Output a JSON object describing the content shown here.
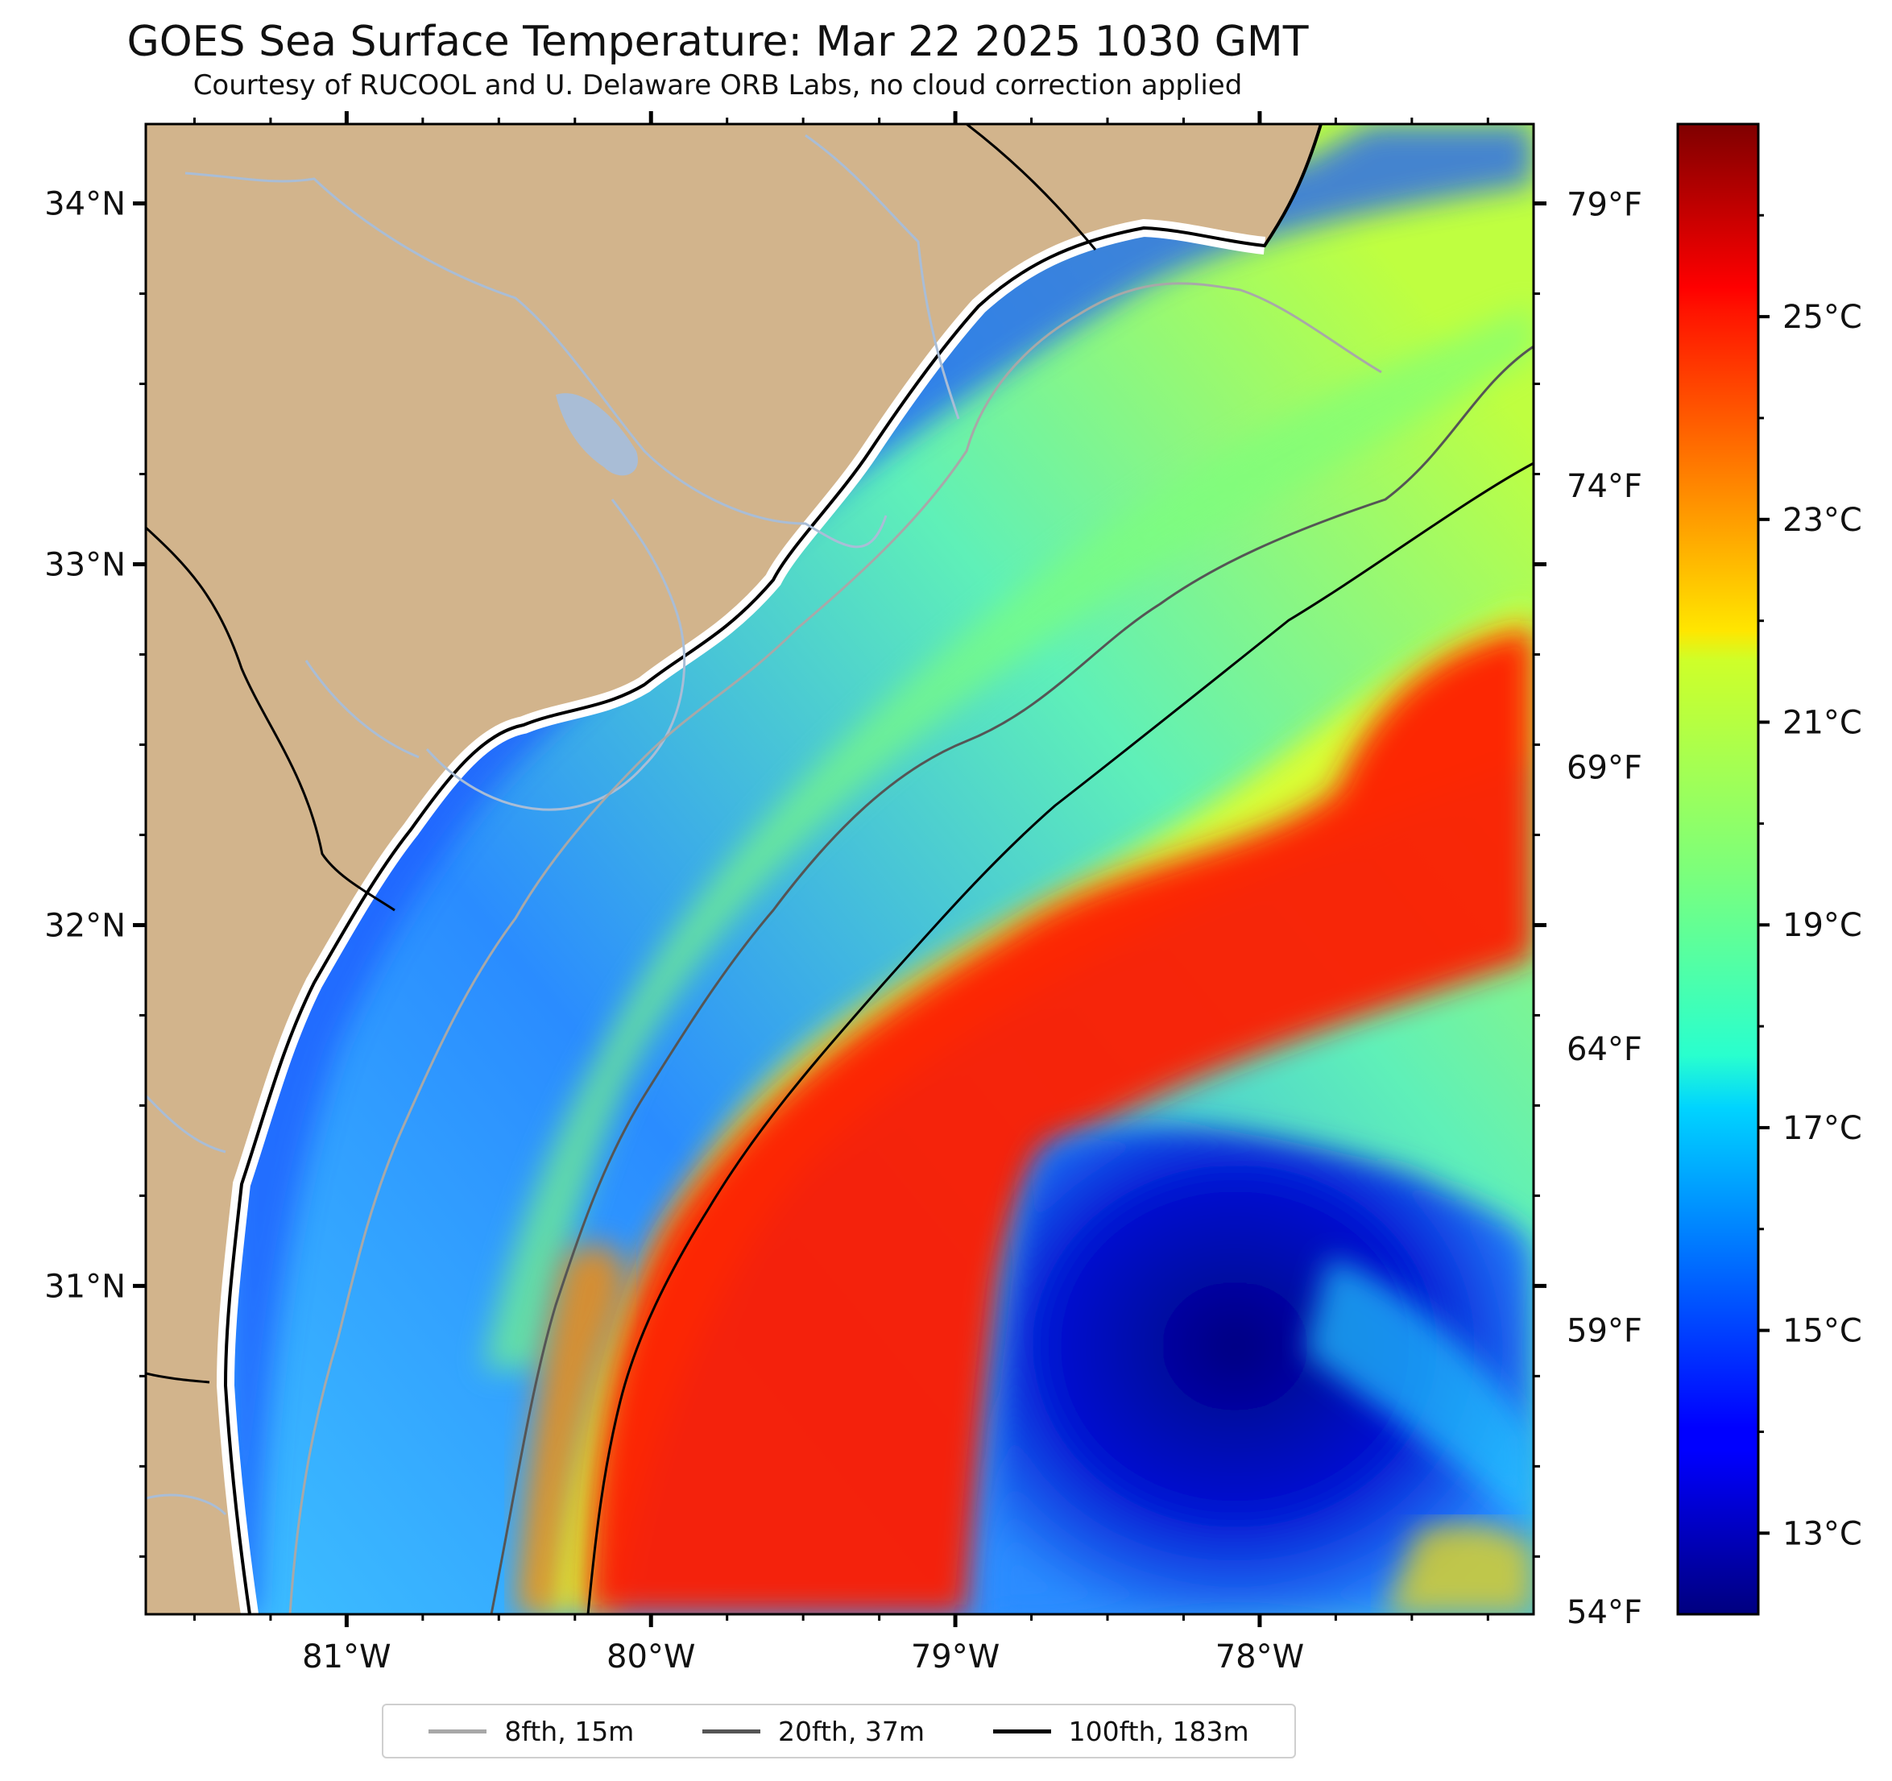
{
  "title": "GOES Sea Surface Temperature: Mar 22 2025 1030 GMT",
  "subtitle": "Courtesy of RUCOOL and U. Delaware ORB Labs, no cloud correction applied",
  "map": {
    "lon_range": [
      -81.66,
      -77.1
    ],
    "lat_range": [
      30.09,
      34.22
    ],
    "lon_ticks": [
      {
        "value": -81,
        "label": "81°W"
      },
      {
        "value": -80,
        "label": "80°W"
      },
      {
        "value": -79,
        "label": "79°W"
      },
      {
        "value": -78,
        "label": "78°W"
      }
    ],
    "lat_ticks": [
      {
        "value": 34,
        "label": "34°N"
      },
      {
        "value": 33,
        "label": "33°N"
      },
      {
        "value": 32,
        "label": "32°N"
      },
      {
        "value": 31,
        "label": "31°N"
      }
    ],
    "fahrenheit_ticks": [
      {
        "value": 79,
        "label": "79°F"
      },
      {
        "value": 74,
        "label": "74°F"
      },
      {
        "value": 69,
        "label": "69°F"
      },
      {
        "value": 64,
        "label": "64°F"
      },
      {
        "value": 59,
        "label": "59°F"
      },
      {
        "value": 54,
        "label": "54°F"
      }
    ],
    "land_color": "#d2b48c",
    "river_color": "#a9bdd6"
  },
  "colorbar": {
    "colormap": "jet",
    "range_c": [
      12.2,
      26.9
    ],
    "ticks": [
      {
        "value": 13,
        "label": "13°C"
      },
      {
        "value": 15,
        "label": "15°C"
      },
      {
        "value": 17,
        "label": "17°C"
      },
      {
        "value": 19,
        "label": "19°C"
      },
      {
        "value": 21,
        "label": "21°C"
      },
      {
        "value": 23,
        "label": "23°C"
      },
      {
        "value": 25,
        "label": "25°C"
      }
    ]
  },
  "legend": {
    "items": [
      {
        "label": "8fth, 15m",
        "color": "#a8a8a8"
      },
      {
        "label": "20fth, 37m",
        "color": "#555555"
      },
      {
        "label": "100fth, 183m",
        "color": "#000000"
      }
    ]
  }
}
